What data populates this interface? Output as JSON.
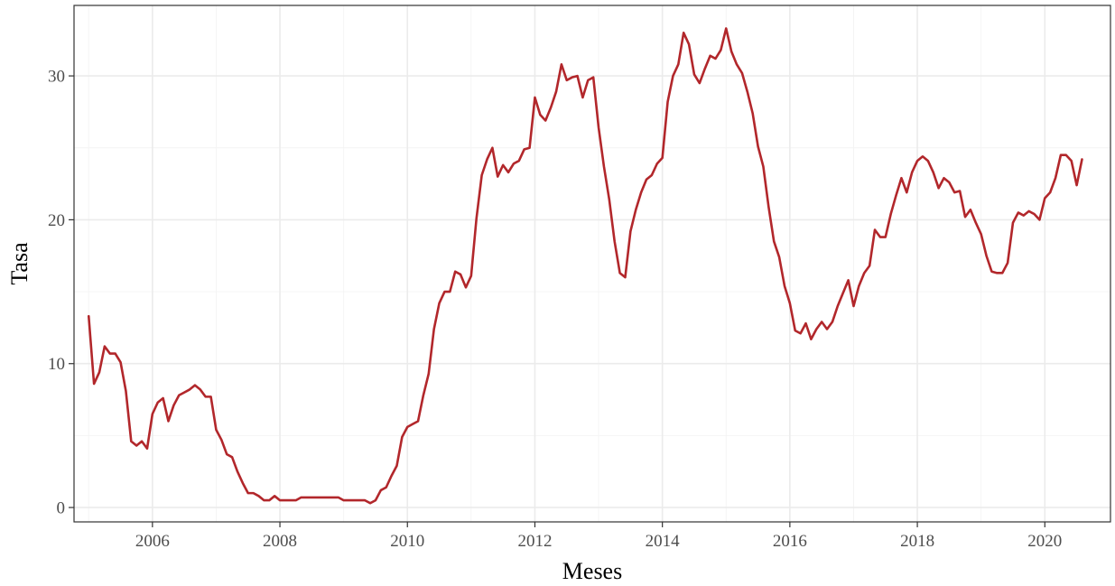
{
  "chart_data": {
    "type": "line",
    "title": "",
    "xlabel": "Meses",
    "ylabel": "Tasa",
    "xlim": [
      2004.77,
      2021.03
    ],
    "ylim": [
      -1.0,
      34.9
    ],
    "x_ticks": [
      2006,
      2008,
      2010,
      2012,
      2014,
      2016,
      2018,
      2020
    ],
    "x_tick_labels": [
      "2006",
      "2008",
      "2010",
      "2012",
      "2014",
      "2016",
      "2018",
      "2020"
    ],
    "y_ticks": [
      0,
      10,
      20,
      30
    ],
    "y_tick_labels": [
      "0",
      "10",
      "20",
      "30"
    ],
    "grid": true,
    "legend": "none",
    "series": [
      {
        "color": "#b2272b",
        "start": [
          2005,
          1
        ],
        "step": "monthly",
        "values": [
          13.3,
          8.6,
          9.4,
          11.2,
          10.7,
          10.7,
          10.1,
          8.1,
          4.6,
          4.3,
          4.6,
          4.1,
          6.5,
          7.3,
          7.6,
          6.0,
          7.1,
          7.8,
          8.0,
          8.2,
          8.5,
          8.2,
          7.7,
          7.7,
          5.4,
          4.7,
          3.7,
          3.5,
          2.5,
          1.7,
          1.0,
          1.0,
          0.8,
          0.5,
          0.5,
          0.8,
          0.5,
          0.5,
          0.5,
          0.5,
          0.7,
          0.7,
          0.7,
          0.7,
          0.7,
          0.7,
          0.7,
          0.7,
          0.5,
          0.5,
          0.5,
          0.5,
          0.5,
          0.3,
          0.5,
          1.2,
          1.4,
          2.2,
          2.9,
          4.9,
          5.6,
          5.8,
          6.0,
          7.8,
          9.3,
          12.4,
          14.2,
          15.0,
          15.0,
          16.4,
          16.2,
          15.3,
          16.1,
          20.1,
          23.1,
          24.2,
          25.0,
          23.0,
          23.8,
          23.3,
          23.9,
          24.1,
          24.9,
          25.0,
          28.5,
          27.3,
          26.9,
          27.8,
          28.9,
          30.8,
          29.7,
          29.9,
          30.0,
          28.5,
          29.7,
          29.9,
          26.4,
          23.7,
          21.4,
          18.5,
          16.3,
          16.0,
          19.2,
          20.7,
          21.9,
          22.8,
          23.1,
          23.9,
          24.3,
          28.2,
          30.0,
          30.8,
          33.0,
          32.2,
          30.1,
          29.5,
          30.5,
          31.4,
          31.2,
          31.8,
          33.3,
          31.7,
          30.8,
          30.2,
          28.9,
          27.4,
          25.1,
          23.7,
          20.9,
          18.5,
          17.4,
          15.4,
          14.2,
          12.3,
          12.1,
          12.8,
          11.7,
          12.4,
          12.9,
          12.4,
          12.9,
          14.0,
          14.9,
          15.8,
          14.0,
          15.4,
          16.3,
          16.8,
          19.3,
          18.8,
          18.8,
          20.4,
          21.7,
          22.9,
          21.9,
          23.3,
          24.1,
          24.4,
          24.1,
          23.3,
          22.2,
          22.9,
          22.6,
          21.9,
          22.0,
          20.2,
          20.7,
          19.8,
          19.0,
          17.5,
          16.4,
          16.3,
          16.3,
          17.0,
          19.8,
          20.5,
          20.3,
          20.6,
          20.4,
          20.0,
          21.5,
          21.9,
          22.9,
          24.5,
          24.5,
          24.1,
          22.4,
          24.2
        ]
      }
    ]
  }
}
